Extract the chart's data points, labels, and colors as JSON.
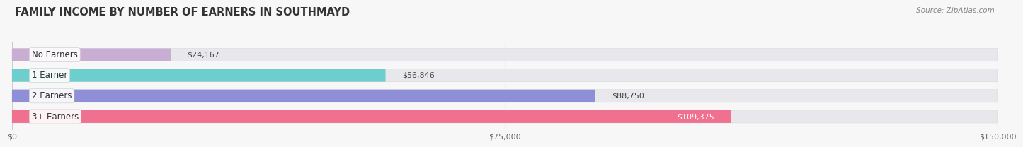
{
  "title": "FAMILY INCOME BY NUMBER OF EARNERS IN SOUTHMAYD",
  "source": "Source: ZipAtlas.com",
  "categories": [
    "No Earners",
    "1 Earner",
    "2 Earners",
    "3+ Earners"
  ],
  "values": [
    24167,
    56846,
    88750,
    109375
  ],
  "bar_colors": [
    "#c9aed4",
    "#6ecece",
    "#8f8fd8",
    "#f07090"
  ],
  "bar_bg_color": "#e8e8ec",
  "label_colors": [
    "#444444",
    "#444444",
    "#444444",
    "#ffffff"
  ],
  "xlim": [
    0,
    150000
  ],
  "xticks": [
    0,
    75000,
    150000
  ],
  "xtick_labels": [
    "$0",
    "$75,000",
    "$150,000"
  ],
  "value_labels": [
    "$24,167",
    "$56,846",
    "$88,750",
    "$109,375"
  ],
  "bg_color": "#f7f7f7",
  "bar_height": 0.62,
  "title_fontsize": 10.5,
  "label_fontsize": 8.5,
  "value_fontsize": 8,
  "source_fontsize": 7.5
}
